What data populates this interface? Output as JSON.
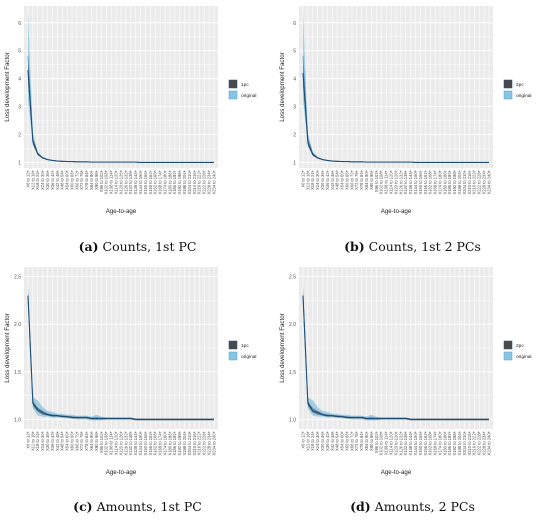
{
  "x_ticks": [
    "X6 to 12+",
    "X12 to 18+",
    "X18 to 24+",
    "X24 to 30+",
    "X30 to 36+",
    "X36 to 42+",
    "X42 to 48+",
    "X48 to 54+",
    "X54 to 60+",
    "X60 to 66+",
    "X66 to 72+",
    "X72 to 78+",
    "X78 to 84+",
    "X84 to 90+",
    "X90 to 96+",
    "X96 to 102+",
    "X102 to 108+",
    "X108 to 114+",
    "X114 to 120+",
    "X120 to 126+",
    "X126 to 132+",
    "X132 to 138+",
    "X138 to 144+",
    "X144 to 150+",
    "X150 to 156+",
    "X156 to 162+",
    "X162 to 168+",
    "X168 to 174+",
    "X174 to 180+",
    "X180 to 186+",
    "X186 to 192+",
    "X192 to 198+",
    "X198 to 204+",
    "X204 to 210+",
    "X210 to 216+",
    "X216 to 222+",
    "X222 to 228+",
    "X228 to 234+",
    "X234 to 240+"
  ],
  "colors": {
    "panel_bg": "#ebebeb",
    "grid": "#ffffff",
    "model_line": "#1f4e79",
    "model_ribbon": "#4a4a4a",
    "original_ribbon": "#89c4e1",
    "original_line": "#4aa3d6"
  },
  "panels": [
    {
      "caption_tag": "(a)",
      "caption_text": "Counts, 1st PC",
      "chart_data": {
        "type": "line",
        "title": "",
        "xlabel": "Age-to-age",
        "ylabel": "Loss development Factor",
        "ylim": [
          0.8,
          6.6
        ],
        "yticks": [
          1,
          2,
          3,
          4,
          5,
          6
        ],
        "legend": "right",
        "series": [
          {
            "name": "1pc",
            "values": [
              4.3,
              1.75,
              1.3,
              1.16,
              1.1,
              1.07,
              1.05,
              1.04,
              1.03,
              1.03,
              1.02,
              1.02,
              1.02,
              1.01,
              1.01,
              1.01,
              1.01,
              1.01,
              1.01,
              1.01,
              1.01,
              1.01,
              1.01,
              1.0,
              1.0,
              1.0,
              1.0,
              1.0,
              1.0,
              1.0,
              1.0,
              1.0,
              1.0,
              1.0,
              1.0,
              1.0,
              1.0,
              1.0,
              1.0
            ],
            "band": [
              0.45,
              0.12,
              0.05,
              0.03,
              0.02,
              0.01,
              0.01,
              0.01,
              0.01,
              0.01,
              0.01,
              0.01,
              0.01,
              0.01,
              0.01,
              0.01,
              0.01,
              0.01,
              0.01,
              0.01,
              0.01,
              0.01,
              0.01,
              0.01,
              0.01,
              0.01,
              0.01,
              0.01,
              0.01,
              0.01,
              0.01,
              0.01,
              0.01,
              0.01,
              0.01,
              0.01,
              0.01,
              0.01,
              0.01
            ]
          },
          {
            "name": "original",
            "values": [
              4.8,
              1.85,
              1.32,
              1.17,
              1.1,
              1.07,
              1.05,
              1.04,
              1.03,
              1.03,
              1.02,
              1.02,
              1.02,
              1.01,
              1.01,
              1.01,
              1.01,
              1.01,
              1.01,
              1.01,
              1.01,
              1.01,
              1.01,
              1.0,
              1.0,
              1.0,
              1.0,
              1.0,
              1.0,
              1.0,
              1.0,
              1.0,
              1.0,
              1.0,
              1.0,
              1.0,
              1.0,
              1.0,
              1.0
            ],
            "band": [
              1.6,
              0.2,
              0.06,
              0.03,
              0.02,
              0.02,
              0.01,
              0.01,
              0.01,
              0.01,
              0.01,
              0.01,
              0.01,
              0.01,
              0.01,
              0.01,
              0.01,
              0.01,
              0.01,
              0.01,
              0.01,
              0.01,
              0.01,
              0.01,
              0.01,
              0.01,
              0.01,
              0.01,
              0.01,
              0.01,
              0.01,
              0.01,
              0.01,
              0.01,
              0.01,
              0.01,
              0.01,
              0.01,
              0.01
            ]
          }
        ]
      }
    },
    {
      "caption_tag": "(b)",
      "caption_text": "Counts, 1st 2 PCs",
      "chart_data": {
        "type": "line",
        "title": "",
        "xlabel": "Age-to-age",
        "ylabel": "Loss development Factor",
        "ylim": [
          0.8,
          6.6
        ],
        "yticks": [
          1,
          2,
          3,
          4,
          5,
          6
        ],
        "legend": "right",
        "series": [
          {
            "name": "2pc",
            "values": [
              4.2,
              1.7,
              1.28,
              1.16,
              1.1,
              1.07,
              1.05,
              1.04,
              1.03,
              1.03,
              1.02,
              1.02,
              1.02,
              1.01,
              1.01,
              1.01,
              1.01,
              1.01,
              1.01,
              1.01,
              1.01,
              1.01,
              1.01,
              1.0,
              1.0,
              1.0,
              1.0,
              1.0,
              1.0,
              1.0,
              1.0,
              1.0,
              1.0,
              1.0,
              1.0,
              1.0,
              1.0,
              1.0,
              1.0
            ],
            "band": [
              0.45,
              0.12,
              0.05,
              0.03,
              0.02,
              0.01,
              0.01,
              0.01,
              0.01,
              0.01,
              0.01,
              0.01,
              0.01,
              0.01,
              0.01,
              0.01,
              0.01,
              0.01,
              0.01,
              0.01,
              0.01,
              0.01,
              0.01,
              0.01,
              0.01,
              0.01,
              0.01,
              0.01,
              0.01,
              0.01,
              0.01,
              0.01,
              0.01,
              0.01,
              0.01,
              0.01,
              0.01,
              0.01,
              0.01
            ]
          },
          {
            "name": "original",
            "values": [
              4.8,
              1.85,
              1.32,
              1.17,
              1.1,
              1.07,
              1.05,
              1.04,
              1.03,
              1.03,
              1.02,
              1.02,
              1.02,
              1.01,
              1.01,
              1.01,
              1.01,
              1.01,
              1.01,
              1.01,
              1.01,
              1.01,
              1.01,
              1.0,
              1.0,
              1.0,
              1.0,
              1.0,
              1.0,
              1.0,
              1.0,
              1.0,
              1.0,
              1.0,
              1.0,
              1.0,
              1.0,
              1.0,
              1.0
            ],
            "band": [
              1.6,
              0.2,
              0.06,
              0.03,
              0.02,
              0.02,
              0.01,
              0.01,
              0.01,
              0.01,
              0.01,
              0.01,
              0.01,
              0.01,
              0.01,
              0.01,
              0.01,
              0.01,
              0.01,
              0.01,
              0.01,
              0.01,
              0.01,
              0.01,
              0.01,
              0.01,
              0.01,
              0.01,
              0.01,
              0.01,
              0.01,
              0.01,
              0.01,
              0.01,
              0.01,
              0.01,
              0.01,
              0.01,
              0.01
            ]
          }
        ]
      }
    },
    {
      "caption_tag": "(c)",
      "caption_text": "Amounts, 1st PC",
      "chart_data": {
        "type": "line",
        "title": "",
        "xlabel": "Age-to-age",
        "ylabel": "Loss development Factor",
        "ylim": [
          0.9,
          2.6
        ],
        "yticks": [
          1.0,
          1.5,
          2.0,
          2.5
        ],
        "ytick_labels": [
          "1.0",
          "1.5",
          "2.0",
          "2.5"
        ],
        "legend": "right",
        "series": [
          {
            "name": "1pc",
            "values": [
              2.3,
              1.17,
              1.1,
              1.07,
              1.05,
              1.04,
              1.04,
              1.03,
              1.03,
              1.02,
              1.02,
              1.02,
              1.02,
              1.01,
              1.01,
              1.01,
              1.01,
              1.01,
              1.01,
              1.01,
              1.01,
              1.01,
              1.0,
              1.0,
              1.0,
              1.0,
              1.0,
              1.0,
              1.0,
              1.0,
              1.0,
              1.0,
              1.0,
              1.0,
              1.0,
              1.0,
              1.0,
              1.0,
              1.0
            ],
            "band": [
              0.06,
              0.03,
              0.02,
              0.02,
              0.01,
              0.01,
              0.01,
              0.01,
              0.01,
              0.01,
              0.01,
              0.01,
              0.01,
              0.01,
              0.01,
              0.01,
              0.01,
              0.01,
              0.01,
              0.01,
              0.01,
              0.01,
              0.01,
              0.01,
              0.01,
              0.01,
              0.01,
              0.01,
              0.01,
              0.01,
              0.01,
              0.01,
              0.01,
              0.01,
              0.01,
              0.01,
              0.01,
              0.01,
              0.01
            ]
          },
          {
            "name": "original",
            "values": [
              2.3,
              1.17,
              1.12,
              1.08,
              1.06,
              1.05,
              1.04,
              1.04,
              1.03,
              1.03,
              1.02,
              1.02,
              1.02,
              1.01,
              1.02,
              1.01,
              1.01,
              1.01,
              1.01,
              1.01,
              1.01,
              1.01,
              1.0,
              1.0,
              1.0,
              1.0,
              1.0,
              1.0,
              1.0,
              1.0,
              1.0,
              1.0,
              1.0,
              1.0,
              1.0,
              1.0,
              1.0,
              1.0,
              1.0
            ],
            "band": [
              0.12,
              0.06,
              0.08,
              0.05,
              0.03,
              0.03,
              0.02,
              0.02,
              0.02,
              0.02,
              0.02,
              0.02,
              0.02,
              0.02,
              0.03,
              0.02,
              0.01,
              0.01,
              0.01,
              0.01,
              0.01,
              0.01,
              0.01,
              0.01,
              0.01,
              0.01,
              0.01,
              0.01,
              0.01,
              0.01,
              0.01,
              0.01,
              0.01,
              0.01,
              0.01,
              0.01,
              0.01,
              0.01,
              0.01
            ]
          }
        ]
      }
    },
    {
      "caption_tag": "(d)",
      "caption_text": "Amounts, 2 PCs",
      "chart_data": {
        "type": "line",
        "title": "",
        "xlabel": "Age-to-age",
        "ylabel": "Loss development Factor",
        "ylim": [
          0.9,
          2.6
        ],
        "yticks": [
          1.0,
          1.5,
          2.0,
          2.5
        ],
        "ytick_labels": [
          "1.0",
          "1.5",
          "2.0",
          "2.5"
        ],
        "legend": "right",
        "series": [
          {
            "name": "2pc",
            "values": [
              2.3,
              1.17,
              1.09,
              1.07,
              1.05,
              1.04,
              1.04,
              1.03,
              1.03,
              1.02,
              1.02,
              1.02,
              1.02,
              1.01,
              1.01,
              1.01,
              1.01,
              1.01,
              1.01,
              1.01,
              1.01,
              1.01,
              1.0,
              1.0,
              1.0,
              1.0,
              1.0,
              1.0,
              1.0,
              1.0,
              1.0,
              1.0,
              1.0,
              1.0,
              1.0,
              1.0,
              1.0,
              1.0,
              1.0
            ],
            "band": [
              0.06,
              0.03,
              0.02,
              0.02,
              0.01,
              0.01,
              0.01,
              0.01,
              0.01,
              0.01,
              0.01,
              0.01,
              0.01,
              0.01,
              0.01,
              0.01,
              0.01,
              0.01,
              0.01,
              0.01,
              0.01,
              0.01,
              0.01,
              0.01,
              0.01,
              0.01,
              0.01,
              0.01,
              0.01,
              0.01,
              0.01,
              0.01,
              0.01,
              0.01,
              0.01,
              0.01,
              0.01,
              0.01,
              0.01
            ]
          },
          {
            "name": "original",
            "values": [
              2.3,
              1.17,
              1.12,
              1.08,
              1.06,
              1.05,
              1.04,
              1.04,
              1.03,
              1.03,
              1.02,
              1.02,
              1.02,
              1.01,
              1.02,
              1.01,
              1.01,
              1.01,
              1.01,
              1.01,
              1.01,
              1.01,
              1.0,
              1.0,
              1.0,
              1.0,
              1.0,
              1.0,
              1.0,
              1.0,
              1.0,
              1.0,
              1.0,
              1.0,
              1.0,
              1.0,
              1.0,
              1.0,
              1.0
            ],
            "band": [
              0.12,
              0.06,
              0.08,
              0.05,
              0.03,
              0.03,
              0.02,
              0.02,
              0.02,
              0.02,
              0.02,
              0.02,
              0.02,
              0.02,
              0.03,
              0.02,
              0.01,
              0.01,
              0.01,
              0.01,
              0.01,
              0.01,
              0.01,
              0.01,
              0.01,
              0.01,
              0.01,
              0.01,
              0.01,
              0.01,
              0.01,
              0.01,
              0.01,
              0.01,
              0.01,
              0.01,
              0.01,
              0.01,
              0.01
            ]
          }
        ]
      }
    }
  ]
}
